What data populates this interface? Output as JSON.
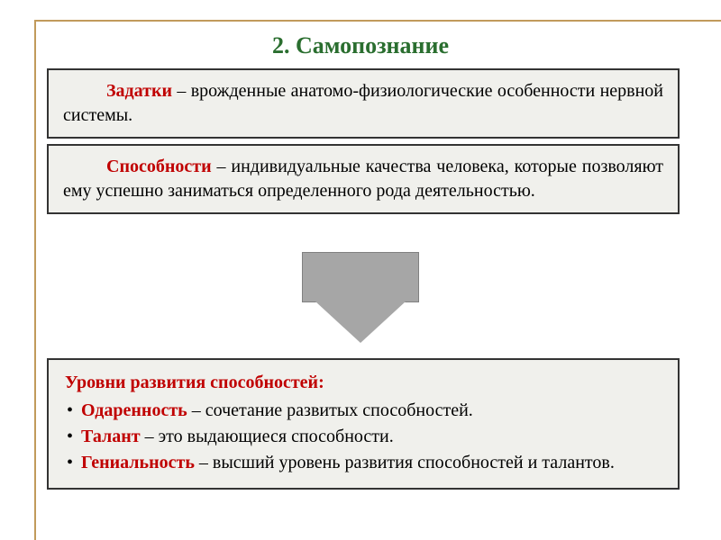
{
  "title": "2. Самопознание",
  "colors": {
    "frame": "#c19a5b",
    "title": "#2a6e2f",
    "term": "#c00000",
    "box_bg": "#f0f0ec",
    "box_border": "#333333",
    "arrow_fill": "#a6a6a6",
    "arrow_border": "#808080",
    "text": "#000000",
    "background": "#ffffff"
  },
  "typography": {
    "title_fontsize": 26,
    "body_fontsize": 20,
    "font_family": "Georgia, Times New Roman, serif"
  },
  "definitions": [
    {
      "term": "Задатки",
      "text": " – врожденные анатомо-физиологические особенности нервной системы."
    },
    {
      "term": "Способности",
      "text": " – индивидуальные качества человека, которые позволяют ему успешно заниматься определенного рода деятельностью."
    }
  ],
  "levels": {
    "heading": "Уровни развития способностей:",
    "items": [
      {
        "term": "Одаренность",
        "text": " – сочетание развитых способностей."
      },
      {
        "term": "Талант",
        "text": " – это выдающиеся способности."
      },
      {
        "term": "Гениальность",
        "text": " – высший уровень развития способностей и талантов."
      }
    ]
  }
}
